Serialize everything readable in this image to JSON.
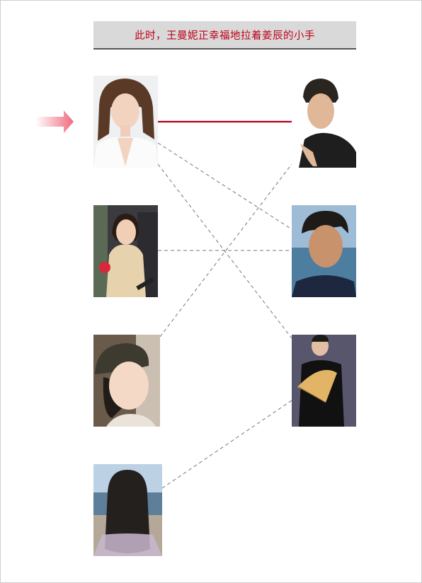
{
  "title": "此时，王曼妮正幸福地拉着姜辰的小手",
  "colors": {
    "title_text": "#c00018",
    "title_bg": "#d9d9d9",
    "highlight_line": "#b0001e",
    "dashed_line": "#777777",
    "arrow": "#f06a7e"
  },
  "left_people": [
    {
      "id": "L1",
      "icon": "woman-white-blazer-photo"
    },
    {
      "id": "L2",
      "icon": "woman-gold-dress-microphone-photo"
    },
    {
      "id": "L3",
      "icon": "girl-beret-smiling-photo"
    },
    {
      "id": "L4",
      "icon": "woman-long-hair-back-view-photo"
    }
  ],
  "right_people": [
    {
      "id": "R1",
      "icon": "man-black-turtleneck-photo"
    },
    {
      "id": "R2",
      "icon": "man-navy-shirt-seaside-photo"
    },
    {
      "id": "R3",
      "icon": "man-black-robe-fan-photo"
    }
  ],
  "connections": [
    {
      "from": "L1",
      "to": "R1",
      "style": "solid-highlight"
    },
    {
      "from": "L1",
      "to": "R2",
      "style": "dashed"
    },
    {
      "from": "L1",
      "to": "R3",
      "style": "dashed"
    },
    {
      "from": "L2",
      "to": "R2",
      "style": "dashed"
    },
    {
      "from": "L3",
      "to": "R1",
      "style": "dashed"
    },
    {
      "from": "L4",
      "to": "R3",
      "style": "dashed"
    }
  ],
  "pointer": {
    "target": "L1",
    "icon": "pink-arrow-icon"
  }
}
